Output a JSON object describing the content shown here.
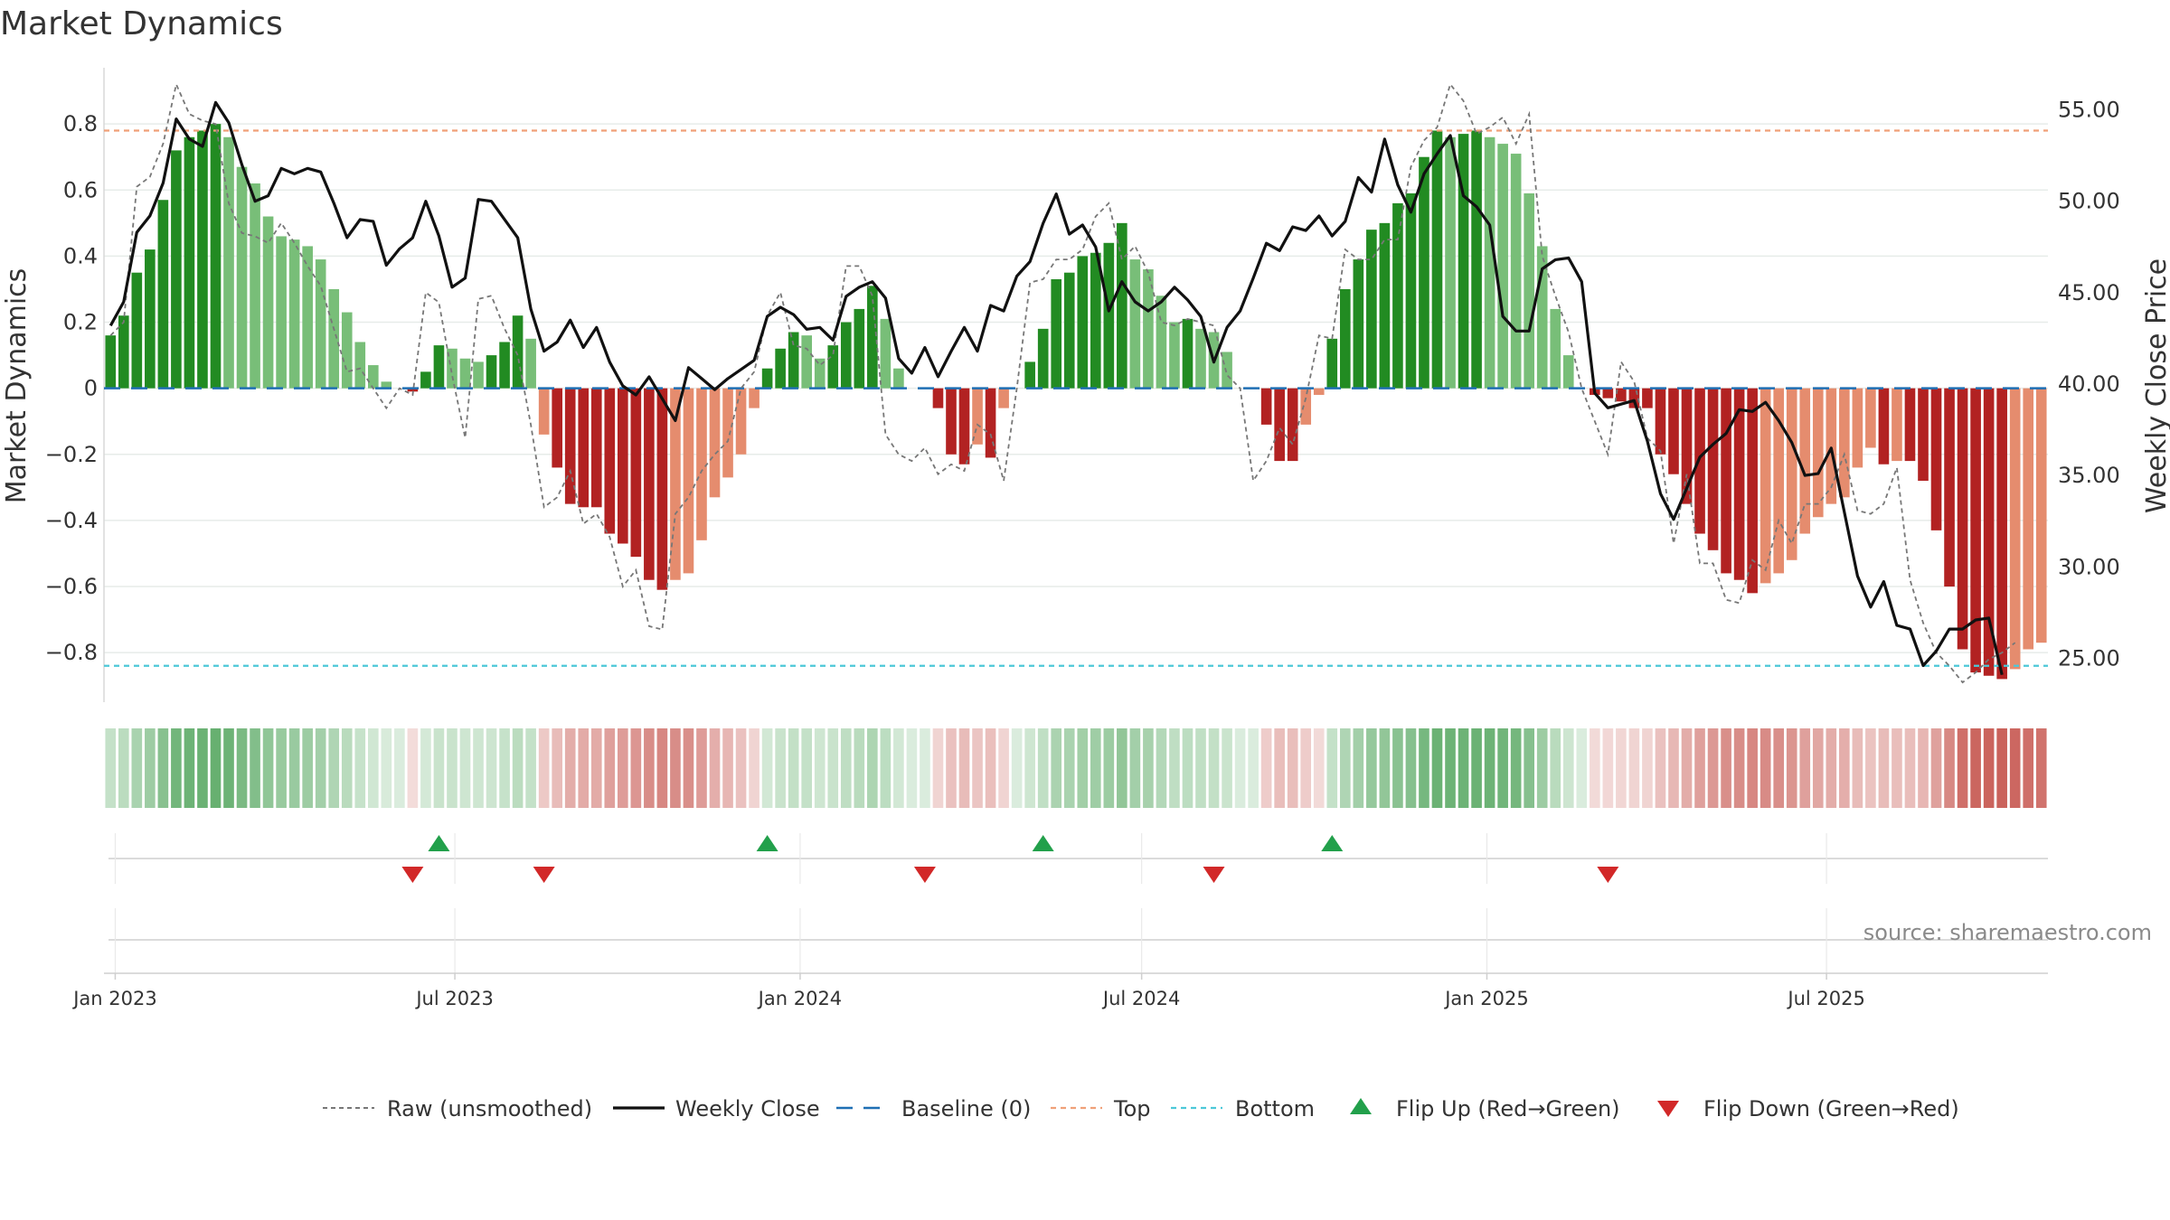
{
  "chart_data": {
    "type": "bar",
    "title": "Market Dynamics",
    "ylabel_left": "Market Dynamics",
    "ylabel_right": "Weekly Close Price",
    "source": "source: sharemaestro.com",
    "ylim_left": [
      -0.95,
      0.97
    ],
    "ylim_right": [
      22.6,
      57.3
    ],
    "yticks_left": [
      {
        "v": 0.8,
        "label": "0.8"
      },
      {
        "v": 0.6,
        "label": "0.6"
      },
      {
        "v": 0.4,
        "label": "0.4"
      },
      {
        "v": 0.2,
        "label": "0.2"
      },
      {
        "v": 0,
        "label": "0"
      },
      {
        "v": -0.2,
        "label": "−0.2"
      },
      {
        "v": -0.4,
        "label": "−0.4"
      },
      {
        "v": -0.6,
        "label": "−0.6"
      },
      {
        "v": -0.8,
        "label": "−0.8"
      }
    ],
    "yticks_right": [
      {
        "v": 55,
        "label": "55.00"
      },
      {
        "v": 50,
        "label": "50.00"
      },
      {
        "v": 45,
        "label": "45.00"
      },
      {
        "v": 40,
        "label": "40.00"
      },
      {
        "v": 35,
        "label": "35.00"
      },
      {
        "v": 30,
        "label": "30.00"
      },
      {
        "v": 25,
        "label": "25.00"
      }
    ],
    "x_start": "2022-12-26",
    "x_ticks": [
      {
        "date": "2023-01-01",
        "label": "Jan 2023"
      },
      {
        "date": "2023-07-01",
        "label": "Jul 2023"
      },
      {
        "date": "2024-01-01",
        "label": "Jan 2024"
      },
      {
        "date": "2024-07-01",
        "label": "Jul 2024"
      },
      {
        "date": "2025-01-01",
        "label": "Jan 2025"
      },
      {
        "date": "2025-07-01",
        "label": "Jul 2025"
      }
    ],
    "top_line": 0.78,
    "bottom_line": -0.84,
    "baseline": 0,
    "dynamics": [
      0.16,
      0.22,
      0.35,
      0.42,
      0.57,
      0.72,
      0.76,
      0.78,
      0.8,
      0.76,
      0.67,
      0.62,
      0.52,
      0.46,
      0.45,
      0.43,
      0.39,
      0.3,
      0.23,
      0.14,
      0.07,
      0.02,
      0.0,
      -0.01,
      0.05,
      0.13,
      0.12,
      0.09,
      0.08,
      0.1,
      0.14,
      0.22,
      0.15,
      -0.14,
      -0.24,
      -0.35,
      -0.36,
      -0.36,
      -0.44,
      -0.47,
      -0.51,
      -0.58,
      -0.61,
      -0.58,
      -0.56,
      -0.46,
      -0.33,
      -0.27,
      -0.2,
      -0.06,
      0.06,
      0.12,
      0.17,
      0.16,
      0.09,
      0.13,
      0.2,
      0.24,
      0.31,
      0.21,
      0.06,
      0.0,
      0.0,
      -0.06,
      -0.2,
      -0.23,
      -0.17,
      -0.21,
      -0.06,
      0.0,
      0.08,
      0.18,
      0.33,
      0.35,
      0.4,
      0.41,
      0.44,
      0.5,
      0.39,
      0.36,
      0.28,
      0.2,
      0.21,
      0.18,
      0.17,
      0.11,
      0.0,
      0.0,
      -0.11,
      -0.22,
      -0.22,
      -0.11,
      -0.02,
      0.15,
      0.3,
      0.39,
      0.48,
      0.5,
      0.56,
      0.59,
      0.7,
      0.78,
      0.76,
      0.77,
      0.78,
      0.76,
      0.74,
      0.71,
      0.59,
      0.43,
      0.24,
      0.1,
      0.0,
      -0.02,
      -0.03,
      -0.04,
      -0.06,
      -0.06,
      -0.2,
      -0.26,
      -0.35,
      -0.44,
      -0.49,
      -0.56,
      -0.58,
      -0.62,
      -0.59,
      -0.56,
      -0.52,
      -0.44,
      -0.39,
      -0.35,
      -0.33,
      -0.24,
      -0.18,
      -0.23,
      -0.22,
      -0.22,
      -0.28,
      -0.43,
      -0.6,
      -0.79,
      -0.86,
      -0.87,
      -0.88,
      -0.85,
      -0.79,
      -0.77
    ],
    "raw": [
      0.16,
      0.2,
      0.61,
      0.64,
      0.74,
      0.92,
      0.83,
      0.81,
      0.8,
      0.56,
      0.47,
      0.46,
      0.44,
      0.5,
      0.44,
      0.37,
      0.31,
      0.18,
      0.05,
      0.06,
      0.0,
      -0.06,
      0.0,
      -0.02,
      0.29,
      0.26,
      0.04,
      -0.15,
      0.27,
      0.28,
      0.18,
      0.1,
      -0.11,
      -0.36,
      -0.33,
      -0.25,
      -0.41,
      -0.38,
      -0.45,
      -0.6,
      -0.55,
      -0.72,
      -0.73,
      -0.38,
      -0.33,
      -0.25,
      -0.2,
      -0.16,
      0.0,
      0.05,
      0.22,
      0.29,
      0.13,
      0.12,
      0.07,
      0.1,
      0.37,
      0.37,
      0.28,
      -0.14,
      -0.2,
      -0.22,
      -0.18,
      -0.26,
      -0.23,
      -0.25,
      -0.11,
      -0.14,
      -0.28,
      0.0,
      0.32,
      0.33,
      0.39,
      0.39,
      0.42,
      0.52,
      0.56,
      0.39,
      0.43,
      0.35,
      0.2,
      0.19,
      0.21,
      0.2,
      0.19,
      0.04,
      0.0,
      -0.28,
      -0.22,
      -0.12,
      -0.17,
      -0.03,
      0.16,
      0.15,
      0.42,
      0.39,
      0.39,
      0.45,
      0.45,
      0.67,
      0.75,
      0.79,
      0.92,
      0.87,
      0.77,
      0.79,
      0.82,
      0.74,
      0.83,
      0.4,
      0.28,
      0.17,
      0.0,
      -0.1,
      -0.2,
      0.08,
      0.02,
      -0.15,
      -0.19,
      -0.47,
      -0.26,
      -0.53,
      -0.53,
      -0.64,
      -0.65,
      -0.52,
      -0.55,
      -0.4,
      -0.47,
      -0.35,
      -0.35,
      -0.3,
      -0.2,
      -0.37,
      -0.38,
      -0.35,
      -0.24,
      -0.58,
      -0.71,
      -0.8,
      -0.84,
      -0.89,
      -0.86,
      -0.82,
      -0.8,
      -0.77
    ],
    "close": [
      43.2,
      44.5,
      48.3,
      49.2,
      51.0,
      54.5,
      53.4,
      53.0,
      55.4,
      54.3,
      52.0,
      50.0,
      50.3,
      51.8,
      51.5,
      51.8,
      51.6,
      49.9,
      48.0,
      49.0,
      48.9,
      46.5,
      47.4,
      48.0,
      50.0,
      48.1,
      45.3,
      45.8,
      50.1,
      50.0,
      49.0,
      48.0,
      44.1,
      41.8,
      42.3,
      43.5,
      42.0,
      43.1,
      41.2,
      39.9,
      39.4,
      40.4,
      39.2,
      38.0,
      40.9,
      40.3,
      39.7,
      40.3,
      40.8,
      41.3,
      43.7,
      44.2,
      43.8,
      43.0,
      43.1,
      42.4,
      44.8,
      45.3,
      45.6,
      44.7,
      41.4,
      40.6,
      42.0,
      40.4,
      41.8,
      43.1,
      41.8,
      44.3,
      44.0,
      45.9,
      46.7,
      48.8,
      50.4,
      48.2,
      48.7,
      47.5,
      44.0,
      45.6,
      44.5,
      44.0,
      44.5,
      45.3,
      44.6,
      43.7,
      41.2,
      43.1,
      44.0,
      45.8,
      47.7,
      47.3,
      48.6,
      48.4,
      49.2,
      48.1,
      48.9,
      51.3,
      50.5,
      53.4,
      50.9,
      49.4,
      51.5,
      52.6,
      53.6,
      50.3,
      49.7,
      48.7,
      43.7,
      42.9,
      42.9,
      46.3,
      46.8,
      46.9,
      45.6,
      39.5,
      38.7,
      38.9,
      39.1,
      36.9,
      34.0,
      32.6,
      34.3,
      36.0,
      36.7,
      37.3,
      38.6,
      38.5,
      39.0,
      38.0,
      36.8,
      35.0,
      35.1,
      36.5,
      33.0,
      29.5,
      27.8,
      29.2,
      26.8,
      26.6,
      24.6,
      25.4,
      26.6,
      26.6,
      27.1,
      27.2,
      24.1
    ],
    "flip_up_weeks": [
      25,
      50,
      71,
      93
    ],
    "flip_down_weeks": [
      23,
      33,
      62,
      84,
      114
    ],
    "legend": [
      {
        "key": "raw",
        "label": "Raw (unsmoothed)"
      },
      {
        "key": "close",
        "label": "Weekly Close"
      },
      {
        "key": "baseline",
        "label": "Baseline (0)"
      },
      {
        "key": "top",
        "label": "Top"
      },
      {
        "key": "bottom",
        "label": "Bottom"
      },
      {
        "key": "flip_up",
        "label": "Flip Up (Red→Green)"
      },
      {
        "key": "flip_down",
        "label": "Flip Down (Green→Red)"
      }
    ],
    "colors": {
      "strong_up": "#228B22",
      "weak_up": "#78BE78",
      "strong_down": "#B22222",
      "weak_down": "#E58C6E",
      "close": "#111111",
      "raw": "#777777",
      "baseline": "#1F6FB4",
      "top": "#F0A078",
      "bottom": "#4CC8D8",
      "flip_up": "#22A04B",
      "flip_down": "#D22828"
    }
  }
}
